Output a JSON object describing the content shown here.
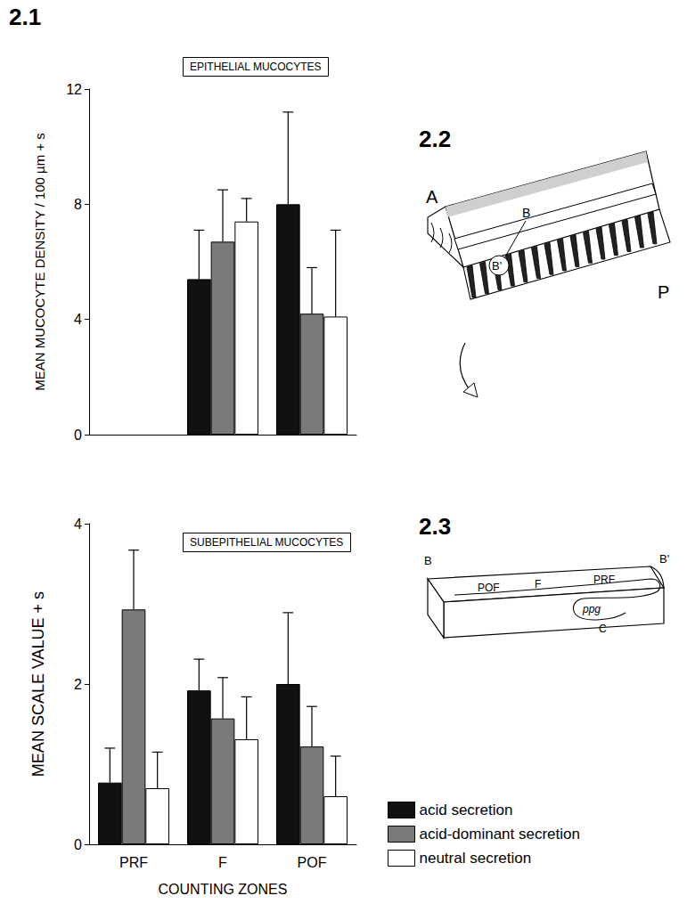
{
  "figure": {
    "panel_labels": [
      "2.1",
      "2.2",
      "2.3"
    ],
    "diagram_2_2": {
      "labels": [
        "A",
        "B",
        "B'",
        "P"
      ]
    },
    "diagram_2_3": {
      "labels": [
        "B",
        "POF",
        "F",
        "PRF",
        "B'",
        "ppg",
        "C"
      ]
    }
  },
  "chart_data": [
    {
      "type": "bar",
      "title": "EPITHELIAL MUCOCYTES",
      "y_label": "MEAN MUCOCYTE DENSITY / 100 µm + s",
      "categories": [
        null,
        null,
        null
      ],
      "series": [
        {
          "name": "acid secretion",
          "color": "#111111",
          "values": [
            null,
            5.4,
            8.0
          ],
          "errors": [
            null,
            1.7,
            3.2
          ]
        },
        {
          "name": "acid-dominant secretion",
          "color": "#7a7a7a",
          "values": [
            null,
            6.7,
            4.2
          ],
          "errors": [
            null,
            1.8,
            1.6
          ]
        },
        {
          "name": "neutral secretion",
          "color": "#ffffff",
          "values": [
            null,
            7.4,
            4.1
          ],
          "errors": [
            null,
            0.8,
            3.0
          ]
        }
      ],
      "ylim": [
        0,
        12
      ],
      "yticks": [
        0,
        4,
        8,
        12
      ],
      "tick_labels": "y",
      "grid": false
    },
    {
      "type": "bar",
      "title": "SUBEPITHELIAL MUCOCYTES",
      "y_label": "MEAN SCALE VALUE + s",
      "x_label": "COUNTING ZONES",
      "categories": [
        "PRF",
        "F",
        "POF"
      ],
      "series": [
        {
          "name": "acid secretion",
          "color": "#111111",
          "values": [
            0.77,
            1.92,
            2.0
          ],
          "errors": [
            0.43,
            0.39,
            0.89
          ]
        },
        {
          "name": "acid-dominant secretion",
          "color": "#7a7a7a",
          "values": [
            2.93,
            1.57,
            1.22
          ],
          "errors": [
            0.74,
            0.51,
            0.5
          ]
        },
        {
          "name": "neutral secretion",
          "color": "#ffffff",
          "values": [
            0.7,
            1.31,
            0.6
          ],
          "errors": [
            0.45,
            0.53,
            0.5
          ]
        }
      ],
      "ylim": [
        0,
        4
      ],
      "yticks": [
        0,
        2,
        4
      ],
      "grid": false,
      "legend": "lower right"
    }
  ]
}
